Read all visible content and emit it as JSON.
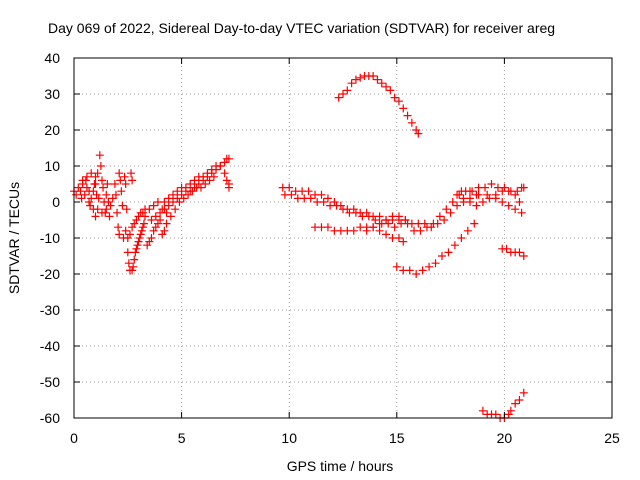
{
  "chart_data": {
    "type": "scatter",
    "title": "Day 069 of 2022, Sidereal Day-to-day VTEC variation (SDTVAR) for receiver areg",
    "xlabel": "GPS time / hours",
    "ylabel": "SDTVAR / TECUs",
    "xlim": [
      0,
      25
    ],
    "ylim": [
      -60,
      40
    ],
    "xticks": [
      0,
      5,
      10,
      15,
      20,
      25
    ],
    "yticks": [
      -60,
      -50,
      -40,
      -30,
      -20,
      -10,
      0,
      10,
      20,
      30,
      40
    ],
    "grid": true,
    "marker": "+",
    "colors": {
      "series": "#ff0000",
      "grid": "#a0a0a0",
      "axis": "#000000"
    },
    "series": [
      {
        "points": [
          [
            0.0,
            3
          ],
          [
            0.1,
            2
          ],
          [
            0.2,
            4
          ],
          [
            0.3,
            3
          ],
          [
            0.35,
            1
          ],
          [
            0.4,
            5
          ],
          [
            0.5,
            2
          ],
          [
            0.55,
            6
          ],
          [
            0.6,
            4
          ],
          [
            0.7,
            3
          ],
          [
            0.75,
            -1
          ],
          [
            0.8,
            1
          ],
          [
            0.9,
            3
          ],
          [
            0.95,
            5
          ],
          [
            1.0,
            7
          ],
          [
            1.05,
            2
          ],
          [
            1.1,
            -2
          ],
          [
            1.15,
            1
          ],
          [
            1.2,
            13
          ],
          [
            1.25,
            10
          ],
          [
            1.3,
            6
          ],
          [
            1.35,
            4
          ],
          [
            1.4,
            0
          ],
          [
            1.45,
            -3
          ],
          [
            1.5,
            2
          ],
          [
            1.55,
            5
          ],
          [
            1.6,
            0
          ],
          [
            1.65,
            -4
          ],
          [
            1.7,
            -1
          ],
          [
            1.8,
            1
          ],
          [
            0.4,
            6
          ],
          [
            0.6,
            7
          ],
          [
            0.8,
            8
          ],
          [
            1.0,
            5
          ],
          [
            1.1,
            8
          ],
          [
            0.9,
            -2
          ],
          [
            1.0,
            -4
          ],
          [
            0.7,
            0
          ],
          [
            1.3,
            -3
          ],
          [
            1.5,
            -2
          ]
        ]
      },
      {
        "points": [
          [
            1.9,
            5
          ],
          [
            1.95,
            2
          ],
          [
            2.0,
            -3
          ],
          [
            2.05,
            -7
          ],
          [
            2.1,
            -9
          ],
          [
            2.1,
            8
          ],
          [
            2.15,
            6
          ],
          [
            2.2,
            3
          ],
          [
            2.25,
            -1
          ],
          [
            2.3,
            -10
          ],
          [
            2.35,
            7
          ],
          [
            2.4,
            5
          ],
          [
            2.45,
            -2
          ],
          [
            2.5,
            -14
          ],
          [
            2.55,
            -17
          ],
          [
            2.6,
            -19
          ],
          [
            2.65,
            8
          ],
          [
            2.7,
            6
          ],
          [
            2.7,
            -19
          ],
          [
            2.75,
            -18
          ],
          [
            2.8,
            -16
          ],
          [
            2.85,
            -14
          ],
          [
            2.9,
            -13
          ],
          [
            2.95,
            -12
          ],
          [
            3.0,
            -11
          ],
          [
            3.05,
            -10
          ],
          [
            3.1,
            -9
          ],
          [
            3.15,
            -8
          ],
          [
            3.2,
            -7
          ],
          [
            3.25,
            -6
          ]
        ]
      },
      {
        "points": [
          [
            2.4,
            -8
          ],
          [
            2.5,
            -10
          ],
          [
            2.6,
            -9
          ],
          [
            2.7,
            -7
          ],
          [
            2.8,
            -6
          ],
          [
            2.9,
            -5
          ],
          [
            3.0,
            -4
          ],
          [
            3.1,
            -3
          ],
          [
            3.2,
            -3
          ],
          [
            3.3,
            -2
          ],
          [
            3.4,
            -12
          ],
          [
            3.5,
            -11
          ],
          [
            3.6,
            -10
          ],
          [
            3.7,
            -8
          ],
          [
            3.8,
            -7
          ],
          [
            3.9,
            -6
          ],
          [
            4.0,
            -5
          ],
          [
            4.1,
            -9
          ],
          [
            4.2,
            -8
          ],
          [
            4.3,
            -6
          ],
          [
            3.3,
            -4
          ],
          [
            3.5,
            -2
          ],
          [
            3.7,
            -1
          ],
          [
            3.9,
            0
          ],
          [
            4.1,
            -2
          ],
          [
            4.3,
            -3
          ],
          [
            3.6,
            -5
          ],
          [
            3.8,
            -4
          ]
        ]
      },
      {
        "points": [
          [
            4.0,
            -3
          ],
          [
            4.2,
            -2
          ],
          [
            4.4,
            -1
          ],
          [
            4.6,
            0
          ],
          [
            4.8,
            1
          ],
          [
            5.0,
            2
          ],
          [
            5.2,
            3
          ],
          [
            5.4,
            3
          ],
          [
            5.6,
            4
          ],
          [
            5.8,
            5
          ],
          [
            6.0,
            6
          ],
          [
            6.2,
            7
          ],
          [
            6.4,
            8
          ],
          [
            6.6,
            9
          ],
          [
            6.8,
            10
          ],
          [
            7.0,
            11
          ],
          [
            7.1,
            12
          ],
          [
            7.2,
            12
          ]
        ]
      },
      {
        "points": [
          [
            4.2,
            0
          ],
          [
            4.4,
            1
          ],
          [
            4.6,
            2
          ],
          [
            4.8,
            3
          ],
          [
            5.0,
            4
          ],
          [
            5.2,
            4
          ],
          [
            5.4,
            5
          ],
          [
            5.6,
            6
          ],
          [
            5.8,
            7
          ],
          [
            6.0,
            7
          ],
          [
            6.2,
            8
          ],
          [
            6.4,
            9
          ],
          [
            6.6,
            10
          ],
          [
            6.8,
            10
          ],
          [
            7.0,
            8
          ],
          [
            7.1,
            6
          ],
          [
            7.2,
            5
          ],
          [
            7.2,
            4
          ],
          [
            4.5,
            -4
          ],
          [
            4.7,
            -2
          ],
          [
            4.9,
            0
          ],
          [
            5.1,
            1
          ],
          [
            5.3,
            2
          ],
          [
            5.5,
            3
          ],
          [
            5.7,
            4
          ],
          [
            5.9,
            4
          ],
          [
            6.1,
            5
          ],
          [
            6.3,
            6
          ],
          [
            6.5,
            7
          ]
        ]
      },
      {
        "points": [
          [
            9.7,
            4
          ],
          [
            10.0,
            4
          ],
          [
            10.3,
            3
          ],
          [
            10.6,
            3
          ],
          [
            10.9,
            3
          ],
          [
            11.2,
            2
          ],
          [
            11.5,
            2
          ],
          [
            11.8,
            1
          ],
          [
            12.1,
            0
          ],
          [
            12.4,
            -1
          ],
          [
            12.7,
            -2
          ],
          [
            13.0,
            -2
          ],
          [
            13.3,
            -3
          ],
          [
            13.6,
            -3
          ],
          [
            13.9,
            -4
          ],
          [
            14.2,
            -4
          ],
          [
            14.5,
            -5
          ],
          [
            14.8,
            -5
          ],
          [
            15.1,
            -5
          ],
          [
            15.4,
            -5
          ]
        ]
      },
      {
        "points": [
          [
            9.8,
            2
          ],
          [
            10.1,
            2
          ],
          [
            10.4,
            1
          ],
          [
            10.7,
            1
          ],
          [
            11.0,
            1
          ],
          [
            11.3,
            0
          ],
          [
            11.6,
            0
          ],
          [
            11.9,
            -1
          ],
          [
            12.2,
            -1
          ],
          [
            12.5,
            -2
          ],
          [
            12.8,
            -3
          ],
          [
            13.1,
            -3
          ],
          [
            13.4,
            -4
          ],
          [
            13.7,
            -4
          ],
          [
            14.0,
            -5
          ],
          [
            14.3,
            -6
          ],
          [
            14.6,
            -6
          ],
          [
            14.9,
            -7
          ],
          [
            15.2,
            -6
          ],
          [
            15.5,
            -6
          ]
        ]
      },
      {
        "points": [
          [
            11.2,
            -7
          ],
          [
            11.5,
            -7
          ],
          [
            11.8,
            -7
          ],
          [
            12.1,
            -8
          ],
          [
            12.4,
            -8
          ],
          [
            12.7,
            -8
          ],
          [
            13.0,
            -8
          ],
          [
            13.3,
            -7
          ],
          [
            13.6,
            -7
          ],
          [
            13.9,
            -7
          ],
          [
            14.2,
            -8
          ],
          [
            14.5,
            -9
          ],
          [
            14.8,
            -10
          ],
          [
            15.1,
            -10
          ],
          [
            15.3,
            -11
          ]
        ]
      },
      {
        "points": [
          [
            13.6,
            -8
          ],
          [
            13.9,
            -7
          ],
          [
            14.2,
            -6
          ],
          [
            14.5,
            -5
          ],
          [
            14.8,
            -4
          ],
          [
            15.1,
            -4
          ],
          [
            15.4,
            -5
          ],
          [
            15.7,
            -6
          ],
          [
            16.0,
            -6
          ],
          [
            16.3,
            -6
          ],
          [
            16.6,
            -7
          ],
          [
            16.9,
            -6
          ],
          [
            17.2,
            -5
          ],
          [
            17.5,
            -3
          ],
          [
            17.8,
            -1
          ],
          [
            18.1,
            0
          ],
          [
            18.4,
            1
          ],
          [
            18.7,
            2
          ]
        ]
      },
      {
        "points": [
          [
            12.3,
            29
          ],
          [
            12.5,
            30
          ],
          [
            12.7,
            31
          ],
          [
            12.9,
            33
          ],
          [
            13.1,
            34
          ],
          [
            13.3,
            34.5
          ],
          [
            13.5,
            35
          ],
          [
            13.7,
            35
          ],
          [
            13.9,
            35
          ],
          [
            14.1,
            34
          ],
          [
            14.3,
            33
          ],
          [
            14.5,
            32
          ],
          [
            14.7,
            31
          ],
          [
            14.9,
            29
          ],
          [
            15.1,
            28
          ],
          [
            15.3,
            26
          ],
          [
            15.5,
            24
          ],
          [
            15.7,
            22
          ],
          [
            15.9,
            20
          ],
          [
            16.0,
            19
          ]
        ]
      },
      {
        "points": [
          [
            15.8,
            -8
          ],
          [
            16.1,
            -8
          ],
          [
            16.4,
            -7
          ],
          [
            16.7,
            -6
          ],
          [
            17.0,
            -4
          ],
          [
            17.3,
            -2
          ],
          [
            17.6,
            0
          ],
          [
            17.9,
            2
          ],
          [
            18.2,
            3
          ],
          [
            18.5,
            3
          ],
          [
            18.8,
            4
          ],
          [
            19.1,
            4
          ],
          [
            19.4,
            5
          ],
          [
            19.7,
            4
          ],
          [
            20.0,
            4
          ],
          [
            20.3,
            3
          ],
          [
            20.6,
            3
          ],
          [
            20.8,
            4
          ]
        ]
      },
      {
        "points": [
          [
            18.0,
            3
          ],
          [
            18.4,
            3
          ],
          [
            18.8,
            2
          ],
          [
            19.2,
            2
          ],
          [
            19.6,
            1
          ],
          [
            19.9,
            0
          ],
          [
            20.2,
            -1
          ],
          [
            20.5,
            -2
          ],
          [
            20.8,
            -3
          ]
        ]
      },
      {
        "points": [
          [
            17.8,
            2
          ],
          [
            18.1,
            1
          ],
          [
            18.4,
            0
          ],
          [
            18.7,
            -1
          ],
          [
            19.0,
            0
          ],
          [
            19.3,
            1
          ],
          [
            19.6,
            2
          ],
          [
            19.9,
            3
          ],
          [
            20.2,
            3
          ],
          [
            20.5,
            2
          ],
          [
            20.7,
            0
          ],
          [
            20.9,
            4
          ]
        ]
      },
      {
        "points": [
          [
            15.0,
            -18
          ],
          [
            15.3,
            -19
          ],
          [
            15.6,
            -19
          ],
          [
            15.9,
            -20
          ],
          [
            16.2,
            -19
          ],
          [
            16.5,
            -18
          ],
          [
            16.8,
            -17
          ],
          [
            17.1,
            -15
          ],
          [
            17.4,
            -14
          ],
          [
            17.7,
            -12
          ],
          [
            18.0,
            -10
          ],
          [
            18.3,
            -8
          ],
          [
            18.6,
            -6
          ]
        ]
      },
      {
        "points": [
          [
            19.9,
            -13
          ],
          [
            20.1,
            -13
          ],
          [
            20.3,
            -14
          ],
          [
            20.5,
            -14
          ],
          [
            20.7,
            -14
          ],
          [
            20.9,
            -15
          ]
        ]
      },
      {
        "points": [
          [
            19.0,
            -58
          ],
          [
            19.2,
            -59
          ],
          [
            19.4,
            -59
          ],
          [
            19.6,
            -59
          ],
          [
            19.8,
            -60
          ],
          [
            20.0,
            -60
          ],
          [
            20.2,
            -59
          ],
          [
            20.3,
            -58
          ],
          [
            20.5,
            -56
          ],
          [
            20.7,
            -55
          ],
          [
            20.9,
            -53
          ]
        ]
      }
    ]
  }
}
